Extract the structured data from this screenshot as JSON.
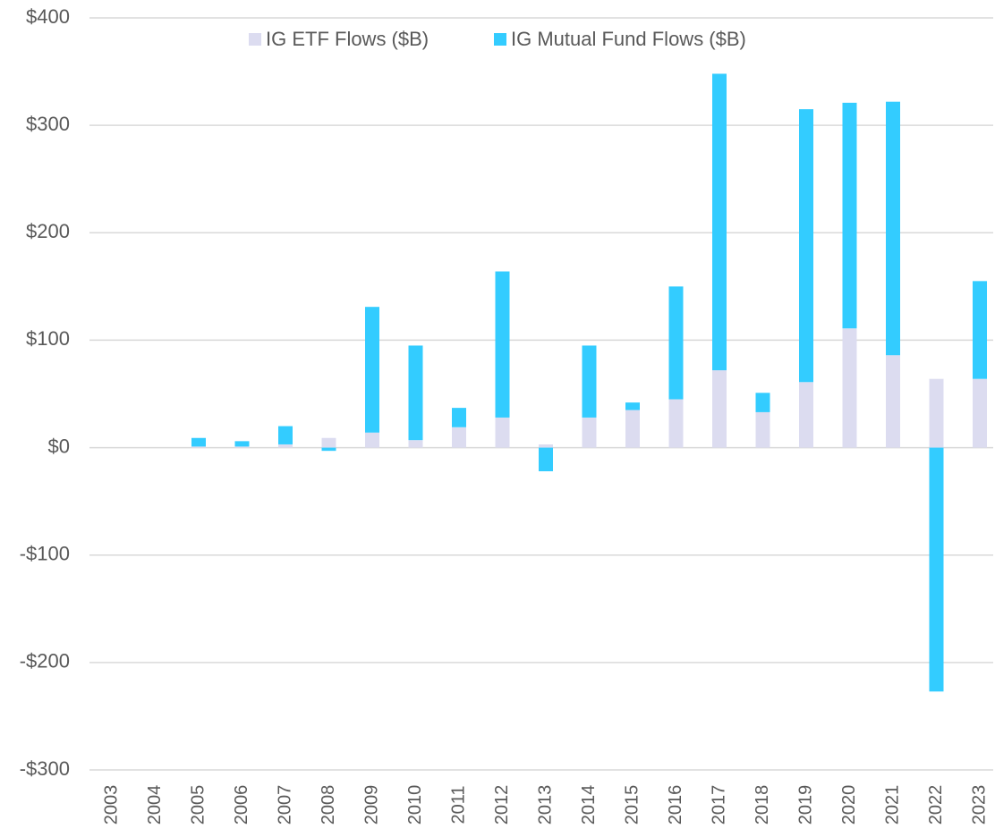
{
  "chart_data": {
    "type": "stacked_bar",
    "categories": [
      "2003",
      "2004",
      "2005",
      "2006",
      "2007",
      "2008",
      "2009",
      "2010",
      "2011",
      "2012",
      "2013",
      "2014",
      "2015",
      "2016",
      "2017",
      "2018",
      "2019",
      "2020",
      "2021",
      "2022",
      "2023"
    ],
    "series": [
      {
        "name": "IG ETF Flows ($B)",
        "color": "#dcdcf0",
        "values": [
          0,
          0,
          1,
          1,
          3,
          9,
          14,
          7,
          19,
          28,
          3,
          28,
          35,
          45,
          72,
          33,
          61,
          111,
          86,
          64,
          64
        ]
      },
      {
        "name": "IG Mutual Fund Flows ($B)",
        "color": "#33ccff",
        "values": [
          0,
          0,
          8,
          5,
          17,
          -3,
          117,
          88,
          18,
          136,
          -22,
          67,
          7,
          105,
          276,
          18,
          254,
          210,
          236,
          -227,
          91
        ]
      }
    ],
    "ylim": [
      -300,
      400
    ],
    "yticks": [
      {
        "value": -300,
        "label": "-$300"
      },
      {
        "value": -200,
        "label": "-$200"
      },
      {
        "value": -100,
        "label": "-$100"
      },
      {
        "value": 0,
        "label": "$0"
      },
      {
        "value": 100,
        "label": "$100"
      },
      {
        "value": 200,
        "label": "$200"
      },
      {
        "value": 300,
        "label": "$300"
      },
      {
        "value": 400,
        "label": "$400"
      }
    ],
    "grid": true,
    "legend": "top"
  }
}
